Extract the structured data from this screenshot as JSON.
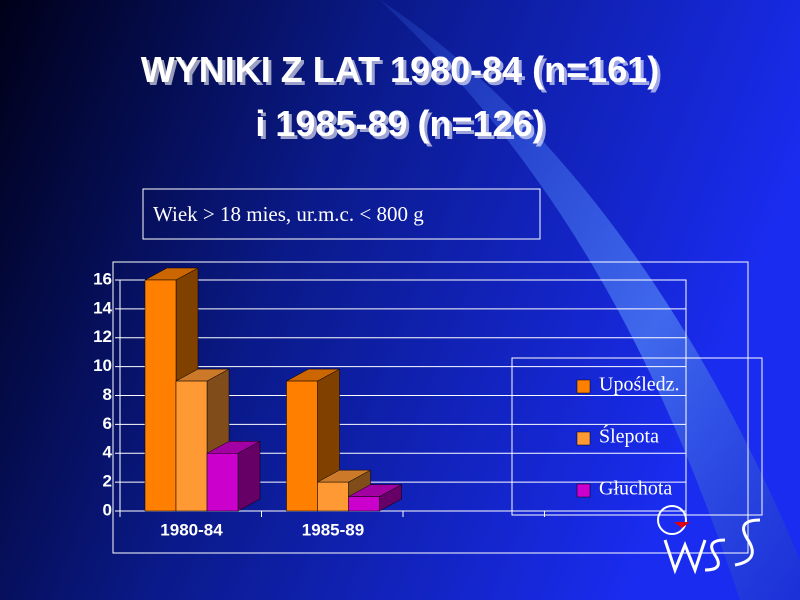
{
  "chart_data": {
    "type": "bar3d",
    "title": [
      "WYNIKI Z LAT 1980-84 (n=161)",
      "i 1985-89  (n=126)"
    ],
    "subtitle": "Wiek  > 18 mies, ur.m.c.  < 800 g",
    "categories": [
      "1980-84",
      "1985-89",
      null,
      null
    ],
    "series": [
      {
        "name": "Upośledz.",
        "color": "#ff8000",
        "values": [
          16,
          9,
          null,
          null
        ]
      },
      {
        "name": "Ślepota",
        "color": "#ff9933",
        "values": [
          9,
          2,
          null,
          null
        ]
      },
      {
        "name": "Głuchota",
        "color": "#cc00cc",
        "values": [
          4,
          1,
          null,
          null
        ]
      }
    ],
    "ylim": [
      0,
      16
    ],
    "yticks": [
      0,
      2,
      4,
      6,
      8,
      10,
      12,
      14,
      16
    ],
    "grid": true,
    "legend": "right"
  }
}
